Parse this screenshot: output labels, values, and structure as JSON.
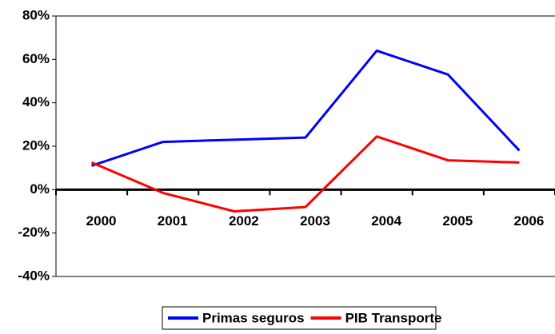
{
  "chart_data": {
    "type": "line",
    "categories": [
      "2000",
      "2001",
      "2002",
      "2003",
      "2004",
      "2005",
      "2006"
    ],
    "series": [
      {
        "name": "Primas seguros",
        "color": "#0000ff",
        "values": [
          11,
          22,
          23,
          24,
          64,
          53,
          18
        ]
      },
      {
        "name": "PIB Transporte",
        "color": "#ff0000",
        "values": [
          12.5,
          -1.5,
          -10,
          -8,
          24.5,
          13.5,
          12.5
        ]
      }
    ],
    "ylim": [
      -40,
      80
    ],
    "yticks": [
      {
        "value": -40,
        "label": "-40%"
      },
      {
        "value": -20,
        "label": "-20%"
      },
      {
        "value": 0,
        "label": "0%"
      },
      {
        "value": 20,
        "label": "20%"
      },
      {
        "value": 40,
        "label": "40%"
      },
      {
        "value": 60,
        "label": "60%"
      },
      {
        "value": 80,
        "label": "80%"
      }
    ],
    "grid": false,
    "legend": "bottom"
  }
}
